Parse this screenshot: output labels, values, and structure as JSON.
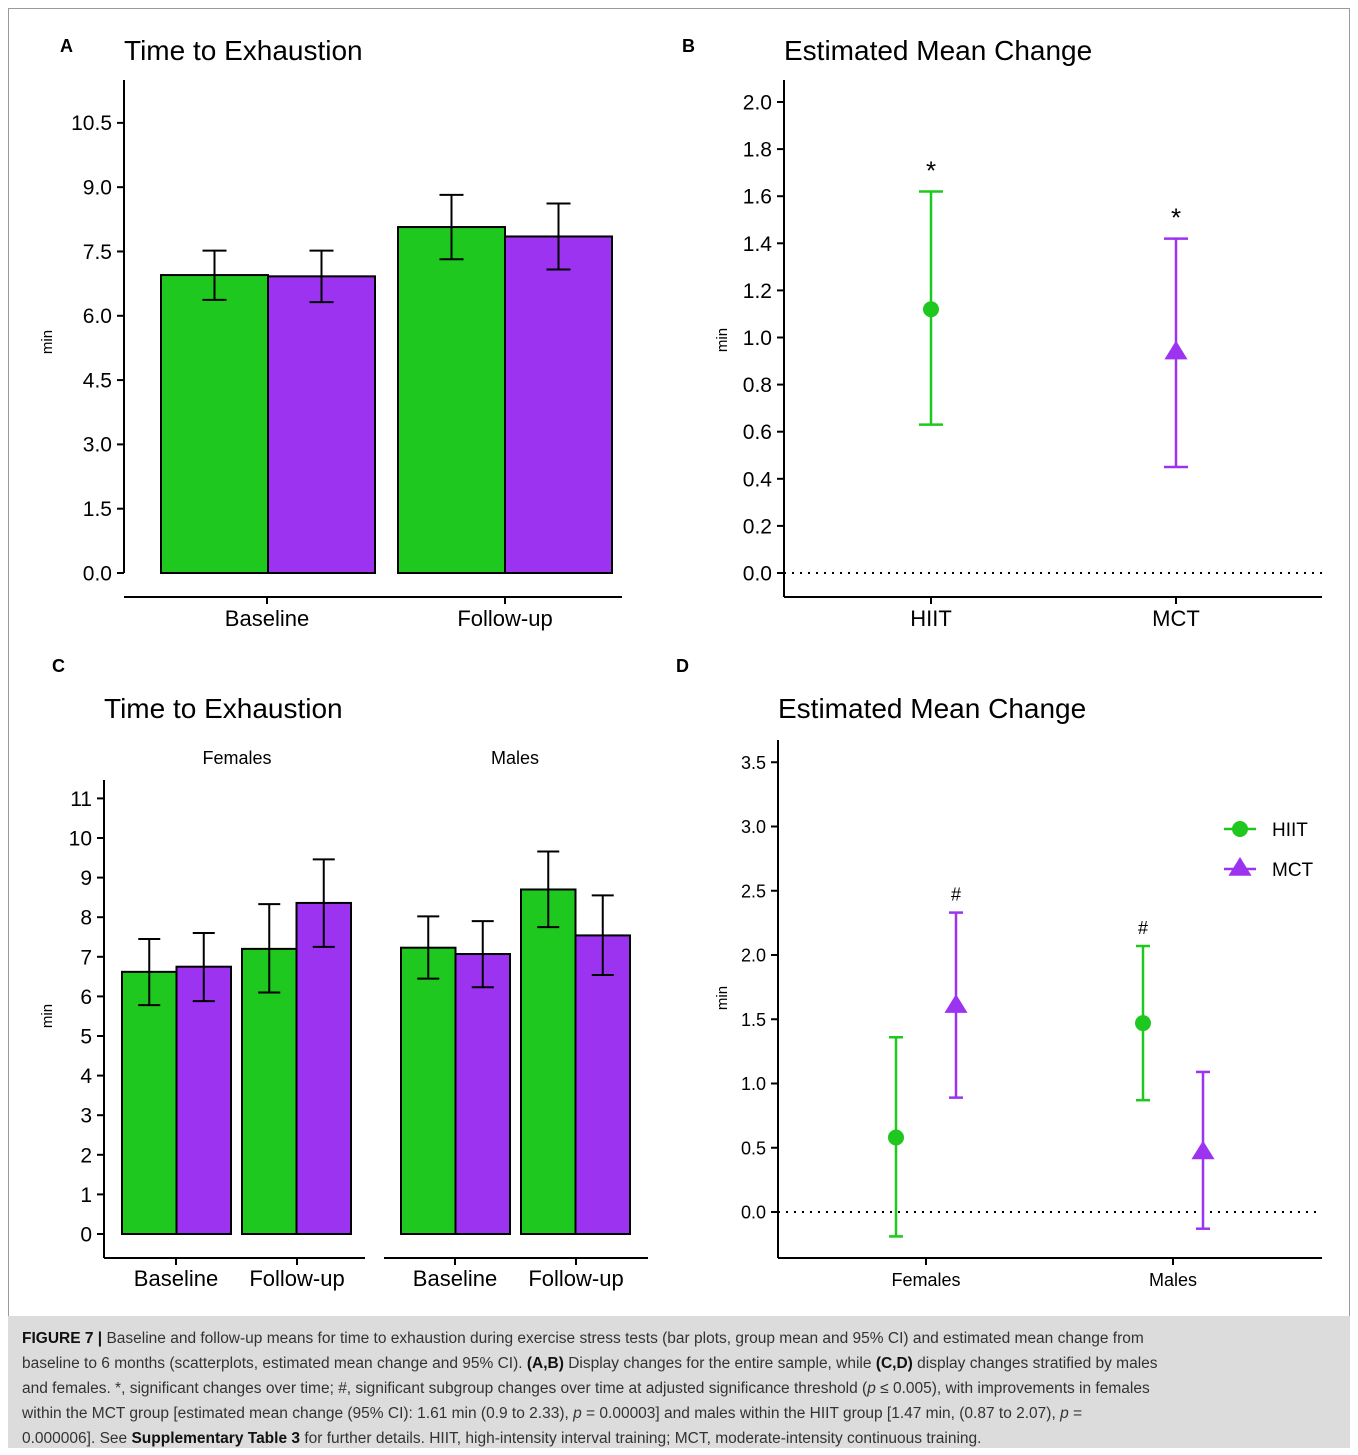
{
  "colors": {
    "hiit": "#1ec81e",
    "mct": "#9b33f0",
    "axis": "#000000"
  },
  "panels": {
    "A": {
      "letter": "A",
      "title": "Time to Exhaustion",
      "ylabel": "min"
    },
    "B": {
      "letter": "B",
      "title": "Estimated Mean Change",
      "ylabel": "min"
    },
    "C": {
      "letter": "C",
      "title": "Time to Exhaustion",
      "ylabel": "min",
      "facets": [
        "Females",
        "Males"
      ]
    },
    "D": {
      "letter": "D",
      "title": "Estimated Mean Change",
      "ylabel": "min"
    }
  },
  "legend": {
    "hiit": "HIIT",
    "mct": "MCT"
  },
  "chart_data": [
    {
      "id": "A",
      "type": "bar",
      "title": "Time to Exhaustion",
      "ylabel": "min",
      "ylim": [
        0,
        11.5
      ],
      "yticks": [
        "0.0",
        "1.5",
        "3.0",
        "4.5",
        "6.0",
        "7.5",
        "9.0",
        "10.5"
      ],
      "categories": [
        "Baseline",
        "Follow-up"
      ],
      "series": [
        {
          "group": "hiit",
          "values": [
            6.95,
            8.07
          ],
          "ci_low": [
            6.37,
            7.32
          ],
          "ci_high": [
            7.52,
            8.82
          ]
        },
        {
          "group": "mct",
          "values": [
            6.92,
            7.85
          ],
          "ci_low": [
            6.32,
            7.08
          ],
          "ci_high": [
            7.52,
            8.62
          ]
        }
      ]
    },
    {
      "id": "B",
      "type": "scatter",
      "title": "Estimated Mean Change",
      "ylabel": "min",
      "ylim": [
        -0.1,
        2.05
      ],
      "yticks": [
        "0.0",
        "0.2",
        "0.4",
        "0.6",
        "0.8",
        "1.0",
        "1.2",
        "1.4",
        "1.6",
        "1.8",
        "2.0"
      ],
      "categories": [
        "HIIT",
        "MCT"
      ],
      "points": [
        {
          "group": "hiit",
          "x": "HIIT",
          "y": 1.12,
          "ci_low": 0.63,
          "ci_high": 1.62,
          "marker": "*"
        },
        {
          "group": "mct",
          "x": "MCT",
          "y": 0.94,
          "ci_low": 0.45,
          "ci_high": 1.42,
          "marker": "*"
        }
      ]
    },
    {
      "id": "C",
      "type": "bar",
      "title": "Time to Exhaustion",
      "ylabel": "min",
      "ylim": [
        0,
        11.4
      ],
      "yticks": [
        "0",
        "1",
        "2",
        "3",
        "4",
        "5",
        "6",
        "7",
        "8",
        "9",
        "10",
        "11"
      ],
      "facets": [
        {
          "name": "Females",
          "categories": [
            "Baseline",
            "Follow-up"
          ],
          "series": [
            {
              "group": "hiit",
              "values": [
                6.62,
                7.2
              ],
              "ci_low": [
                5.78,
                6.1
              ],
              "ci_high": [
                7.45,
                8.33
              ]
            },
            {
              "group": "mct",
              "values": [
                6.75,
                8.36
              ],
              "ci_low": [
                5.88,
                7.25
              ],
              "ci_high": [
                7.6,
                9.46
              ]
            }
          ]
        },
        {
          "name": "Males",
          "categories": [
            "Baseline",
            "Follow-up"
          ],
          "series": [
            {
              "group": "hiit",
              "values": [
                7.23,
                8.7
              ],
              "ci_low": [
                6.45,
                7.75
              ],
              "ci_high": [
                8.02,
                9.66
              ]
            },
            {
              "group": "mct",
              "values": [
                7.07,
                7.54
              ],
              "ci_low": [
                6.23,
                6.54
              ],
              "ci_high": [
                7.9,
                8.55
              ]
            }
          ]
        }
      ]
    },
    {
      "id": "D",
      "type": "scatter",
      "title": "Estimated Mean Change",
      "ylabel": "min",
      "ylim": [
        -0.35,
        3.7
      ],
      "yticks": [
        "0.0",
        "0.5",
        "1.0",
        "1.5",
        "2.0",
        "2.5",
        "3.0",
        "3.5"
      ],
      "categories": [
        "Females",
        "Males"
      ],
      "legend_position": "right",
      "points": [
        {
          "group": "hiit",
          "x": "Females",
          "y": 0.58,
          "ci_low": -0.19,
          "ci_high": 1.36,
          "marker": ""
        },
        {
          "group": "mct",
          "x": "Females",
          "y": 1.61,
          "ci_low": 0.89,
          "ci_high": 2.33,
          "marker": "#"
        },
        {
          "group": "hiit",
          "x": "Males",
          "y": 1.47,
          "ci_low": 0.87,
          "ci_high": 2.07,
          "marker": "#"
        },
        {
          "group": "mct",
          "x": "Males",
          "y": 0.47,
          "ci_low": -0.13,
          "ci_high": 1.09,
          "marker": ""
        }
      ]
    }
  ],
  "caption": {
    "figure_label": "FIGURE 7 |",
    "line1": " Baseline and follow-up means for time to exhaustion during exercise stress tests (bar plots, group mean and 95% CI) and estimated mean change from",
    "line2a": "baseline to 6 months (scatterplots, estimated mean change and 95% CI). ",
    "line2b": "(A,B)",
    "line2c": " Display changes for the entire sample, while ",
    "line2d": "(C,D)",
    "line2e": " display changes stratified by males",
    "line3a": "and females. *, significant changes over time; #, significant subgroup changes over time at adjusted significance threshold (",
    "line3b": "p",
    "line3c": " ≤ 0.005), with improvements in females",
    "line4a": "within the MCT group [estimated mean change (95% CI): 1.61 min (0.9 to 2.33), ",
    "line4b": "p",
    "line4c": " = 0.00003] and males within the HIIT group [1.47 min, (0.87 to 2.07), ",
    "line4d": "p",
    "line4e": " =",
    "line5a": "0.000006]. See ",
    "line5b": "Supplementary Table 3",
    "line5c": " for further details. HIIT, high-intensity interval training; MCT, moderate-intensity continuous training."
  }
}
